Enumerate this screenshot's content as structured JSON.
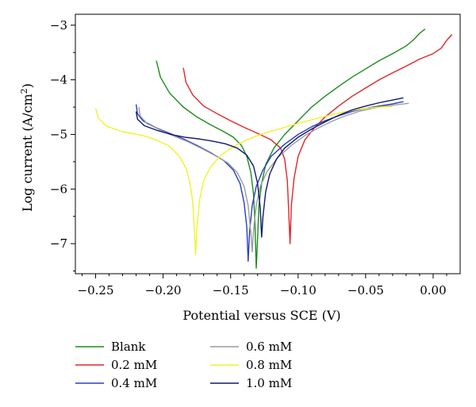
{
  "chart_data": {
    "type": "line",
    "xlabel": "Potential versus SCE (V)",
    "ylabel": "Log current (A/cm²)",
    "xlim": [
      -0.265,
      0.02
    ],
    "ylim": [
      -7.55,
      -2.8
    ],
    "x_ticks": [
      "-0.25",
      "-0.20",
      "-0.15",
      "-0.10",
      "-0.05",
      "0.00"
    ],
    "x_tick_values": [
      -0.25,
      -0.2,
      -0.15,
      -0.1,
      -0.05,
      0.0
    ],
    "y_ticks": [
      "-7",
      "-6",
      "-5",
      "-4",
      "-3"
    ],
    "y_tick_values": [
      -7,
      -6,
      -5,
      -4,
      -3
    ],
    "grid": false,
    "legend_position": "bottom",
    "series": [
      {
        "name": "Blank",
        "color": "#1a8c1a",
        "points": [
          [
            -0.205,
            -3.65
          ],
          [
            -0.202,
            -3.95
          ],
          [
            -0.195,
            -4.25
          ],
          [
            -0.185,
            -4.5
          ],
          [
            -0.175,
            -4.68
          ],
          [
            -0.165,
            -4.82
          ],
          [
            -0.155,
            -4.95
          ],
          [
            -0.148,
            -5.05
          ],
          [
            -0.142,
            -5.2
          ],
          [
            -0.138,
            -5.4
          ],
          [
            -0.135,
            -5.7
          ],
          [
            -0.133,
            -6.1
          ],
          [
            -0.132,
            -6.6
          ],
          [
            -0.131,
            -7.45
          ],
          [
            -0.13,
            -6.9
          ],
          [
            -0.129,
            -6.3
          ],
          [
            -0.127,
            -5.9
          ],
          [
            -0.124,
            -5.55
          ],
          [
            -0.118,
            -5.25
          ],
          [
            -0.11,
            -5.0
          ],
          [
            -0.1,
            -4.75
          ],
          [
            -0.09,
            -4.5
          ],
          [
            -0.08,
            -4.3
          ],
          [
            -0.07,
            -4.12
          ],
          [
            -0.06,
            -3.95
          ],
          [
            -0.05,
            -3.8
          ],
          [
            -0.04,
            -3.65
          ],
          [
            -0.03,
            -3.52
          ],
          [
            -0.02,
            -3.38
          ],
          [
            -0.015,
            -3.28
          ],
          [
            -0.01,
            -3.15
          ],
          [
            -0.006,
            -3.07
          ]
        ]
      },
      {
        "name": "0.2 mM",
        "color": "#e0262a",
        "points": [
          [
            -0.185,
            -3.78
          ],
          [
            -0.183,
            -4.05
          ],
          [
            -0.178,
            -4.28
          ],
          [
            -0.17,
            -4.48
          ],
          [
            -0.16,
            -4.62
          ],
          [
            -0.15,
            -4.75
          ],
          [
            -0.14,
            -4.87
          ],
          [
            -0.13,
            -4.98
          ],
          [
            -0.12,
            -5.1
          ],
          [
            -0.113,
            -5.25
          ],
          [
            -0.11,
            -5.45
          ],
          [
            -0.108,
            -5.85
          ],
          [
            -0.107,
            -6.4
          ],
          [
            -0.106,
            -7.0
          ],
          [
            -0.105,
            -6.3
          ],
          [
            -0.103,
            -5.8
          ],
          [
            -0.1,
            -5.4
          ],
          [
            -0.095,
            -5.1
          ],
          [
            -0.088,
            -4.88
          ],
          [
            -0.08,
            -4.68
          ],
          [
            -0.07,
            -4.48
          ],
          [
            -0.06,
            -4.3
          ],
          [
            -0.05,
            -4.15
          ],
          [
            -0.04,
            -4.0
          ],
          [
            -0.03,
            -3.87
          ],
          [
            -0.02,
            -3.75
          ],
          [
            -0.01,
            -3.62
          ],
          [
            0.0,
            -3.52
          ],
          [
            0.006,
            -3.42
          ],
          [
            0.01,
            -3.28
          ],
          [
            0.014,
            -3.17
          ]
        ]
      },
      {
        "name": "0.4 mM",
        "color": "#2a3dc8",
        "points": [
          [
            -0.22,
            -4.45
          ],
          [
            -0.219,
            -4.62
          ],
          [
            -0.215,
            -4.75
          ],
          [
            -0.205,
            -4.88
          ],
          [
            -0.195,
            -4.98
          ],
          [
            -0.185,
            -5.08
          ],
          [
            -0.175,
            -5.2
          ],
          [
            -0.165,
            -5.33
          ],
          [
            -0.155,
            -5.48
          ],
          [
            -0.148,
            -5.65
          ],
          [
            -0.143,
            -5.9
          ],
          [
            -0.14,
            -6.25
          ],
          [
            -0.138,
            -6.7
          ],
          [
            -0.137,
            -7.32
          ],
          [
            -0.136,
            -6.8
          ],
          [
            -0.134,
            -6.3
          ],
          [
            -0.131,
            -5.95
          ],
          [
            -0.126,
            -5.65
          ],
          [
            -0.12,
            -5.4
          ],
          [
            -0.11,
            -5.18
          ],
          [
            -0.1,
            -5.0
          ],
          [
            -0.09,
            -4.86
          ],
          [
            -0.08,
            -4.75
          ],
          [
            -0.07,
            -4.66
          ],
          [
            -0.06,
            -4.58
          ],
          [
            -0.05,
            -4.52
          ],
          [
            -0.04,
            -4.48
          ],
          [
            -0.03,
            -4.44
          ],
          [
            -0.022,
            -4.4
          ]
        ]
      },
      {
        "name": "0.6 mM",
        "color": "#9c9c9c",
        "points": [
          [
            -0.218,
            -4.5
          ],
          [
            -0.217,
            -4.66
          ],
          [
            -0.212,
            -4.8
          ],
          [
            -0.202,
            -4.92
          ],
          [
            -0.192,
            -5.03
          ],
          [
            -0.182,
            -5.13
          ],
          [
            -0.172,
            -5.25
          ],
          [
            -0.162,
            -5.38
          ],
          [
            -0.152,
            -5.52
          ],
          [
            -0.145,
            -5.7
          ],
          [
            -0.14,
            -5.95
          ],
          [
            -0.137,
            -6.3
          ],
          [
            -0.135,
            -6.8
          ],
          [
            -0.134,
            -7.15
          ],
          [
            -0.133,
            -6.75
          ],
          [
            -0.131,
            -6.3
          ],
          [
            -0.128,
            -5.95
          ],
          [
            -0.123,
            -5.68
          ],
          [
            -0.115,
            -5.42
          ],
          [
            -0.105,
            -5.2
          ],
          [
            -0.095,
            -5.02
          ],
          [
            -0.085,
            -4.88
          ],
          [
            -0.075,
            -4.76
          ],
          [
            -0.065,
            -4.66
          ],
          [
            -0.055,
            -4.58
          ],
          [
            -0.045,
            -4.52
          ],
          [
            -0.035,
            -4.48
          ],
          [
            -0.025,
            -4.45
          ],
          [
            -0.018,
            -4.43
          ]
        ]
      },
      {
        "name": "0.8 mM",
        "color": "#f2f22a",
        "points": [
          [
            -0.25,
            -4.52
          ],
          [
            -0.248,
            -4.7
          ],
          [
            -0.242,
            -4.85
          ],
          [
            -0.23,
            -4.95
          ],
          [
            -0.215,
            -5.02
          ],
          [
            -0.205,
            -5.1
          ],
          [
            -0.195,
            -5.22
          ],
          [
            -0.188,
            -5.4
          ],
          [
            -0.183,
            -5.62
          ],
          [
            -0.18,
            -5.9
          ],
          [
            -0.178,
            -6.25
          ],
          [
            -0.177,
            -6.7
          ],
          [
            -0.176,
            -7.2
          ],
          [
            -0.175,
            -6.7
          ],
          [
            -0.173,
            -6.2
          ],
          [
            -0.17,
            -5.85
          ],
          [
            -0.165,
            -5.6
          ],
          [
            -0.158,
            -5.4
          ],
          [
            -0.15,
            -5.25
          ],
          [
            -0.14,
            -5.12
          ],
          [
            -0.13,
            -5.02
          ],
          [
            -0.12,
            -4.94
          ],
          [
            -0.11,
            -4.87
          ],
          [
            -0.1,
            -4.8
          ],
          [
            -0.09,
            -4.73
          ],
          [
            -0.08,
            -4.67
          ],
          [
            -0.07,
            -4.61
          ],
          [
            -0.06,
            -4.56
          ],
          [
            -0.05,
            -4.52
          ],
          [
            -0.04,
            -4.5
          ],
          [
            -0.03,
            -4.49
          ]
        ]
      },
      {
        "name": "1.0 mM",
        "color": "#0f1a6e",
        "points": [
          [
            -0.22,
            -4.58
          ],
          [
            -0.219,
            -4.72
          ],
          [
            -0.214,
            -4.84
          ],
          [
            -0.204,
            -4.93
          ],
          [
            -0.194,
            -5.0
          ],
          [
            -0.184,
            -5.05
          ],
          [
            -0.174,
            -5.08
          ],
          [
            -0.164,
            -5.12
          ],
          [
            -0.154,
            -5.17
          ],
          [
            -0.145,
            -5.25
          ],
          [
            -0.138,
            -5.38
          ],
          [
            -0.133,
            -5.58
          ],
          [
            -0.13,
            -5.9
          ],
          [
            -0.128,
            -6.35
          ],
          [
            -0.127,
            -6.88
          ],
          [
            -0.126,
            -6.5
          ],
          [
            -0.124,
            -6.05
          ],
          [
            -0.121,
            -5.72
          ],
          [
            -0.116,
            -5.45
          ],
          [
            -0.11,
            -5.25
          ],
          [
            -0.1,
            -5.05
          ],
          [
            -0.09,
            -4.9
          ],
          [
            -0.08,
            -4.77
          ],
          [
            -0.07,
            -4.65
          ],
          [
            -0.06,
            -4.55
          ],
          [
            -0.05,
            -4.48
          ],
          [
            -0.04,
            -4.42
          ],
          [
            -0.03,
            -4.37
          ],
          [
            -0.022,
            -4.33
          ]
        ]
      }
    ]
  }
}
